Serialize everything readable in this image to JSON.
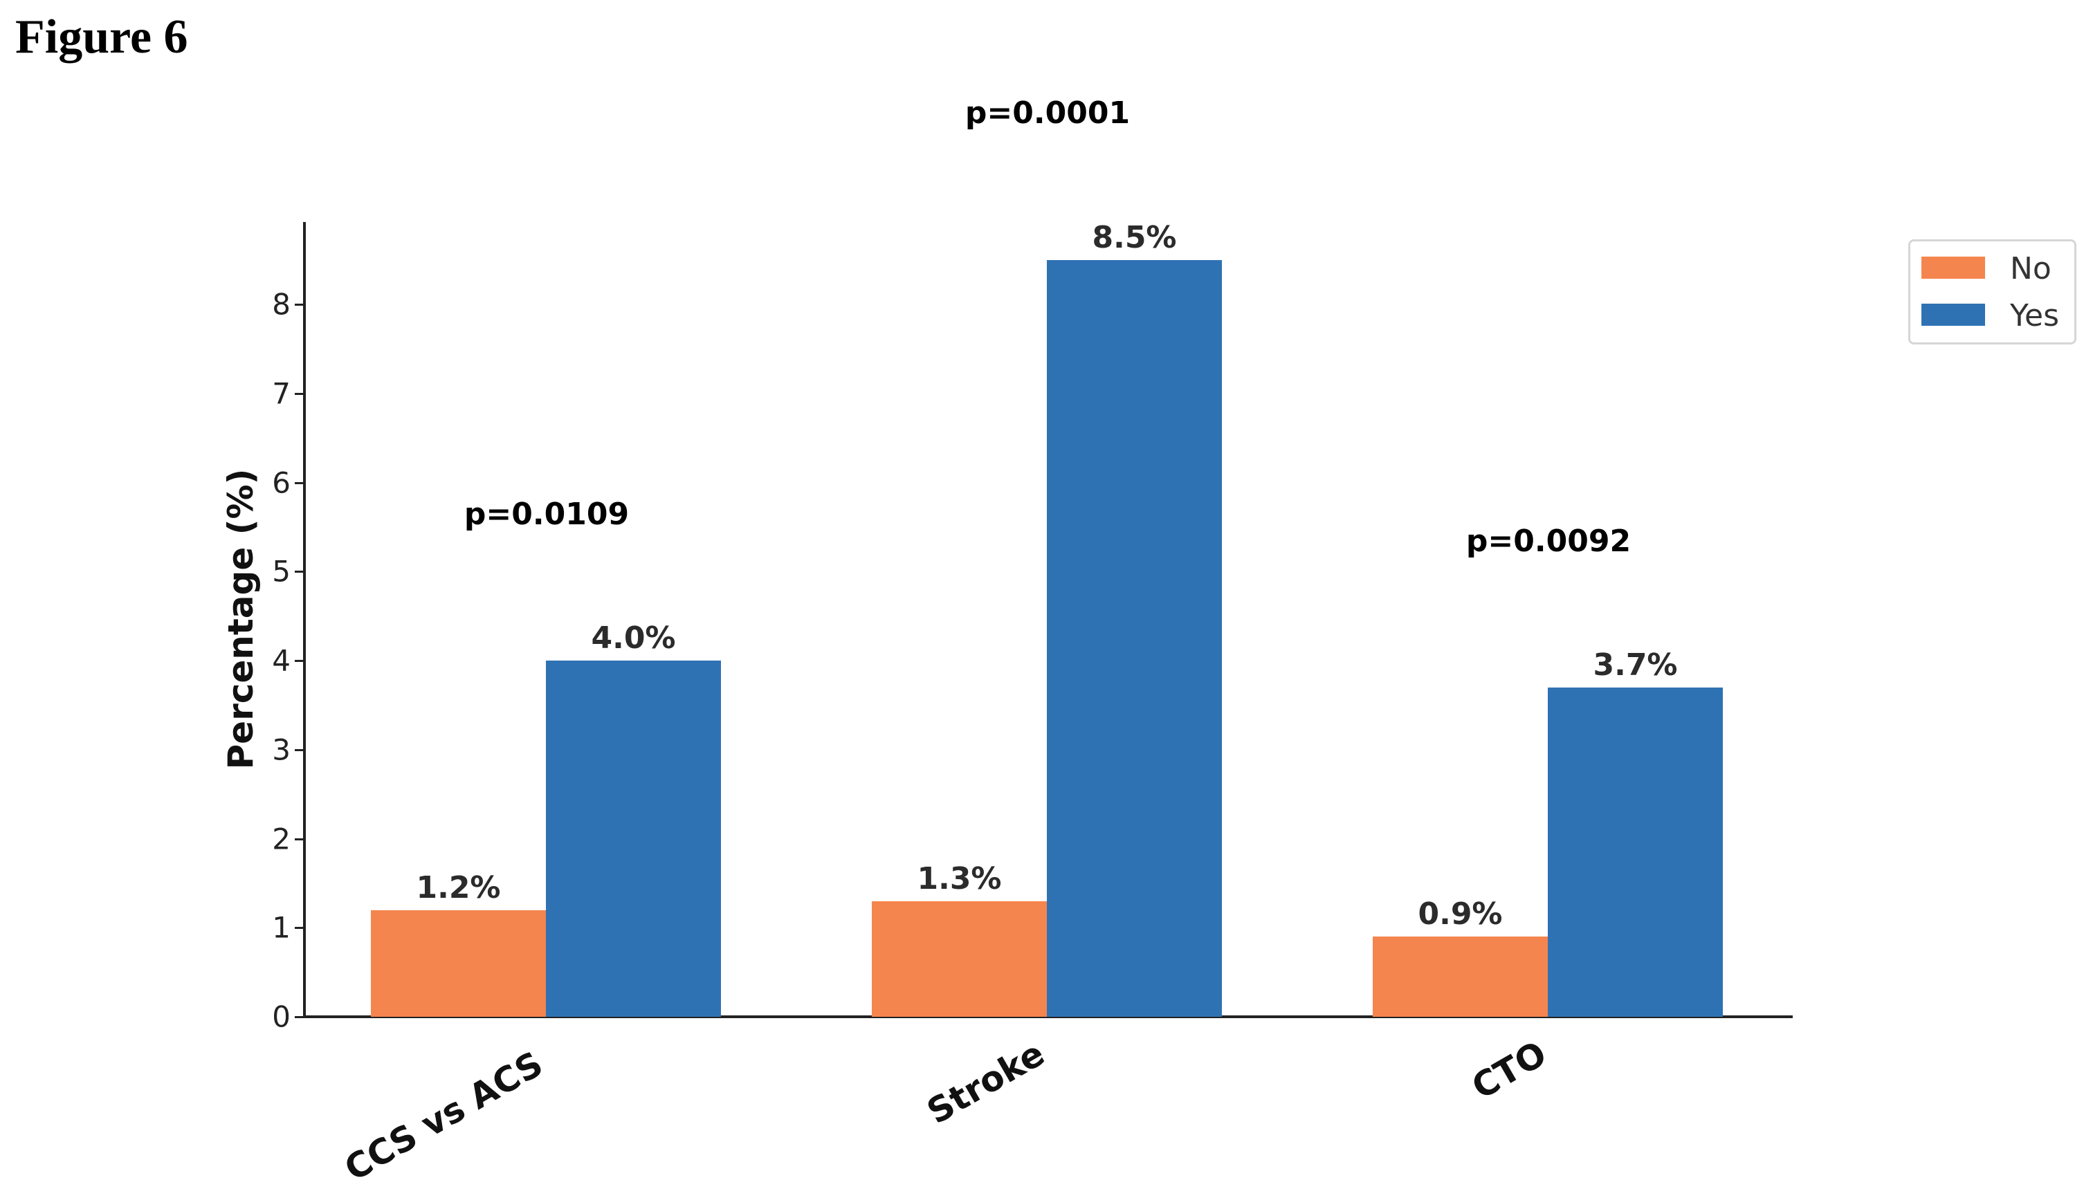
{
  "figure": {
    "title": "Figure 6"
  },
  "colors": {
    "no": "#f5854e",
    "yes": "#2f72b4"
  },
  "chart_data": {
    "type": "bar",
    "title": "",
    "xlabel": "",
    "ylabel": "Percentage (%)",
    "ylim": [
      0,
      8.9
    ],
    "yticks": [
      "0",
      "1",
      "2",
      "3",
      "4",
      "5",
      "6",
      "7",
      "8"
    ],
    "categories": [
      "CCS vs ACS",
      "Stroke",
      "CTO"
    ],
    "series": [
      {
        "name": "No",
        "color": "#f5854e",
        "values": [
          1.2,
          1.3,
          0.9
        ],
        "labels": [
          "1.2%",
          "1.3%",
          "0.9%"
        ]
      },
      {
        "name": "Yes",
        "color": "#2f72b4",
        "values": [
          4.0,
          8.5,
          3.7
        ],
        "labels": [
          "4.0%",
          "8.5%",
          "3.7%"
        ]
      }
    ],
    "annotations": [
      "p=0.0109",
      "p=0.0001",
      "p=0.0092"
    ],
    "legend": {
      "position": "upper right",
      "entries": [
        "No",
        "Yes"
      ]
    },
    "grid": false
  }
}
